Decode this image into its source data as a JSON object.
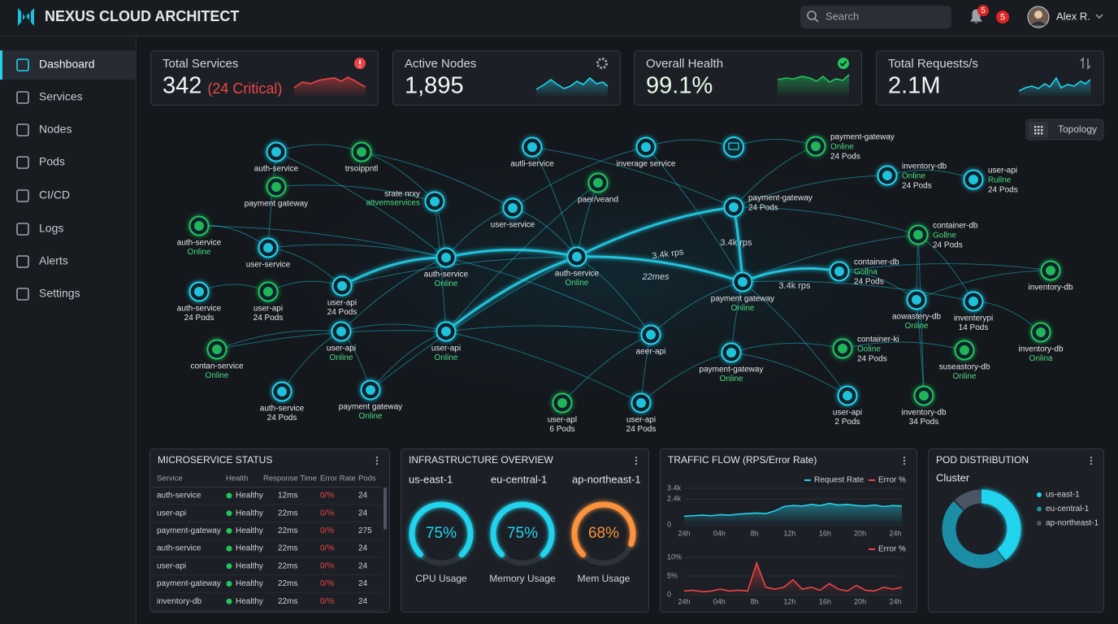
{
  "header": {
    "brand": "NEXUS CLOUD ARCHITECT",
    "search": "Search",
    "badges": [
      "5",
      "5"
    ],
    "user": "Alex R."
  },
  "sidebar": [
    "Dashboard",
    "Services",
    "Nodes",
    "Pods",
    "CI/CD",
    "Logs",
    "Alerts",
    "Settings"
  ],
  "kpis": [
    {
      "title": "Total Services",
      "value": "342",
      "note": "(24 Critical)"
    },
    {
      "title": "Active Nodes",
      "value": "1,895"
    },
    {
      "title": "Overall Health",
      "value": "99.1%"
    },
    {
      "title": "Total Requests/s",
      "value": "2.1M"
    }
  ],
  "topology": {
    "button": "Topology",
    "nodes": [
      {
        "label": "auth-service",
        "color": "#22d3ee"
      },
      {
        "label": "trsoippntl",
        "color": "#22c55e"
      },
      {
        "label": "payment gateway",
        "color": "#22c55e"
      },
      {
        "label": "auth-service",
        "status": "Online",
        "color": "#22c55e"
      },
      {
        "label": "user-service",
        "color": "#22d3ee"
      },
      {
        "label": "auth-service",
        "pods": "24 Pods",
        "color": "#22d3ee"
      },
      {
        "label": "user-api",
        "pods": "24 Pods",
        "color": "#22c55e"
      },
      {
        "label": "user-api",
        "pods": "24 Pods",
        "color": "#22d3ee"
      },
      {
        "label": "srate nrxy",
        "status": "attvemservices",
        "color": "#22d3ee"
      },
      {
        "label": "auth-service",
        "status": "Online",
        "color": "#22d3ee"
      },
      {
        "label": "contan-service",
        "status": "Online",
        "color": "#22c55e"
      },
      {
        "label": "user-api",
        "status": "Online",
        "color": "#22d3ee"
      },
      {
        "label": "auth-service",
        "pods": "24 Pods",
        "color": "#22d3ee"
      },
      {
        "label": "payment gateway",
        "status": "Online",
        "color": "#22d3ee"
      },
      {
        "label": "user-api",
        "status": "Online",
        "color": "#22d3ee"
      },
      {
        "label": "autli-service",
        "color": "#22d3ee"
      },
      {
        "label": "paer/veand",
        "color": "#22c55e"
      },
      {
        "label": "user-service",
        "color": "#22d3ee"
      },
      {
        "label": "auth-service",
        "status": "Online",
        "color": "#22d3ee"
      },
      {
        "label": "inverage service",
        "color": "#22d3ee"
      },
      {
        "label": "payment-gateway",
        "status": "Online",
        "pods": "24 Pods",
        "color": "#22c55e"
      },
      {
        "label": "payment-gateway",
        "pods": "24 Pods",
        "color": "#22d3ee"
      },
      {
        "label": "payment gateway",
        "status": "Online",
        "color": "#22d3ee"
      },
      {
        "label": "aeer-api",
        "color": "#22d3ee"
      },
      {
        "label": "payment-gateway",
        "status": "Online",
        "color": "#22d3ee"
      },
      {
        "label": "user-apl",
        "pods": "6 Pods",
        "color": "#22c55e"
      },
      {
        "label": "user-api",
        "pods": "24 Pods",
        "color": "#22d3ee"
      },
      {
        "label": "inventory-db",
        "status": "Online",
        "pods": "24 Pods",
        "color": "#22d3ee"
      },
      {
        "label": "user-api",
        "status": "Rullne",
        "pods": "24 Pods",
        "color": "#22d3ee"
      },
      {
        "label": "container-db",
        "status": "Gollne",
        "pods": "24 Pods",
        "color": "#22c55e"
      },
      {
        "label": "container-db",
        "status": "Gollna",
        "pods": "24 Pods",
        "color": "#22d3ee"
      },
      {
        "label": "inventory-db",
        "color": "#22c55e"
      },
      {
        "label": "aowastery-db",
        "status": "Online",
        "color": "#22d3ee"
      },
      {
        "label": "inventerypi",
        "pods": "14 Pods",
        "color": "#22d3ee"
      },
      {
        "label": "container-ki",
        "status": "Ooline",
        "pods": "24 Pods",
        "color": "#22c55e"
      },
      {
        "label": "inventory-db",
        "status": "Onlina",
        "color": "#22c55e"
      },
      {
        "label": "suseastory-db",
        "status": "Online",
        "color": "#22c55e"
      },
      {
        "label": "user-api",
        "pods": "2 Pods",
        "color": "#22d3ee"
      },
      {
        "label": "inventory-db",
        "pods": "34 Pods",
        "color": "#22c55e"
      }
    ],
    "edge_labels": [
      "3.4k rps",
      "22mes",
      "3.4k rps",
      "3.4k rps"
    ]
  },
  "status": {
    "title": "MICROSERVICE STATUS",
    "headers": [
      "Service",
      "Health",
      "Response Time",
      "Error Rate",
      "Pods"
    ],
    "rows": [
      [
        "auth-service",
        "Healthy",
        "12ms",
        "0/%",
        "24"
      ],
      [
        "user-api",
        "Healthy",
        "22ms",
        "0/%",
        "24"
      ],
      [
        "payment-gateway",
        "Healthy",
        "22ms",
        "0/%",
        "275"
      ],
      [
        "auth-service",
        "Healthy",
        "22ms",
        "0/%",
        "24"
      ],
      [
        "user-api",
        "Healthy",
        "22ms",
        "0/%",
        "24"
      ],
      [
        "payment-gateway",
        "Healthy",
        "22ms",
        "0/%",
        "24"
      ],
      [
        "inventory-db",
        "Healthy",
        "22ms",
        "0/%",
        "24"
      ]
    ]
  },
  "infra": {
    "title": "INFRASTRUCTURE OVERVIEW",
    "regions": [
      {
        "name": "us-east-1",
        "value": 75,
        "label": "75%",
        "caption": "CPU Usage",
        "color": "#22d3ee"
      },
      {
        "name": "eu-central-1",
        "value": 75,
        "label": "75%",
        "caption": "Memory Usage",
        "color": "#22d3ee"
      },
      {
        "name": "ap-northeast-1",
        "value": 68,
        "label": "68%",
        "caption": "Mem Usage",
        "color": "#fb923c"
      }
    ]
  },
  "traffic": {
    "title": "TRAFFIC FLOW (RPS/Error Rate)",
    "chart_data": [
      {
        "type": "line",
        "x_labels": [
          "24h",
          "04h",
          "8h",
          "12h",
          "16h",
          "20h",
          "24h"
        ],
        "ylim": [
          0,
          3400
        ],
        "yticks": [
          {
            "value": 3400,
            "label": "3.4k"
          },
          {
            "value": 2400,
            "label": "2.4k"
          },
          0
        ],
        "series": [
          {
            "name": "Request Rate",
            "color": "#22d3ee",
            "values": [
              800,
              850,
              900,
              850,
              950,
              900,
              1000,
              1050,
              1100,
              1050,
              1300,
              1700,
              1800,
              1750,
              1900,
              1800,
              2000,
              1850,
              1900,
              1800,
              1750,
              1850,
              1700,
              1800,
              1750
            ]
          }
        ],
        "legend_extra": "Error %"
      },
      {
        "type": "line",
        "x_labels": [
          "24h",
          "04h",
          "8h",
          "12h",
          "16h",
          "20h",
          "24h"
        ],
        "ylim": [
          0,
          10
        ],
        "yticks": [
          {
            "value": 10,
            "label": "10%"
          },
          {
            "value": 5,
            "label": "5%"
          },
          0
        ],
        "series": [
          {
            "name": "Error %",
            "color": "#ef4444",
            "values": [
              1,
              1.2,
              0.8,
              1,
              1.5,
              1,
              1.2,
              1,
              8.5,
              2,
              1.5,
              2,
              4,
              1.5,
              2,
              1.2,
              3,
              1.5,
              1,
              2.5,
              1.2,
              1,
              2,
              1.5,
              2
            ]
          }
        ]
      }
    ]
  },
  "pods": {
    "title": "POD DISTRIBUTION",
    "subtitle": "Cluster",
    "chart_data": {
      "type": "pie",
      "categories": [
        "us-east-1",
        "eu-central-1",
        "ap-northeast-1"
      ],
      "values": [
        40,
        48,
        12
      ],
      "colors": [
        "#22d3ee",
        "#1b8ea6",
        "#4b5563"
      ]
    }
  }
}
